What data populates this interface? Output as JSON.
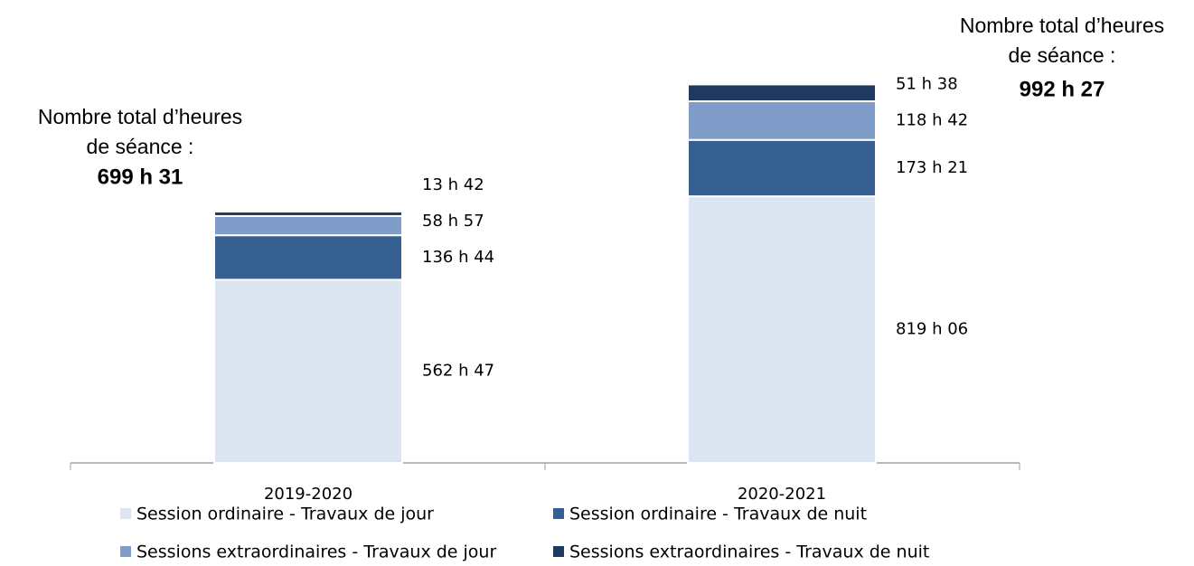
{
  "chart_data": {
    "type": "stacked_bar",
    "categories": [
      "2019-2020",
      "2020-2021"
    ],
    "ylim": [
      0,
      1200
    ],
    "series": [
      {
        "name": "Session ordinaire - Travaux de jour",
        "color": "#dce6f2",
        "values": [
          562.7833,
          819.1
        ],
        "value_labels": [
          "562 h 47",
          "819 h 06"
        ]
      },
      {
        "name": "Session ordinaire - Travaux de nuit",
        "color": "#376092",
        "values": [
          136.7333,
          173.35
        ],
        "value_labels": [
          "136 h 44",
          "173 h 21"
        ]
      },
      {
        "name": "Sessions extraordinaires - Travaux de jour",
        "color": "#7f9dc8",
        "values": [
          58.95,
          118.7
        ],
        "value_labels": [
          "58 h 57",
          "118 h 42"
        ]
      },
      {
        "name": "Sessions extraordinaires - Travaux de nuit",
        "color": "#1f3a5f",
        "values": [
          13.7,
          51.6333
        ],
        "value_labels": [
          "13 h 42",
          "51 h 38"
        ]
      }
    ],
    "annotations": [
      {
        "lines": [
          "Nombre total d’heures",
          "de séance :"
        ],
        "value": 699.5167,
        "label": "699 h 31"
      },
      {
        "lines": [
          "Nombre total d’heures",
          "de séance :"
        ],
        "value": 992.45,
        "label": "992 h 27"
      }
    ]
  }
}
